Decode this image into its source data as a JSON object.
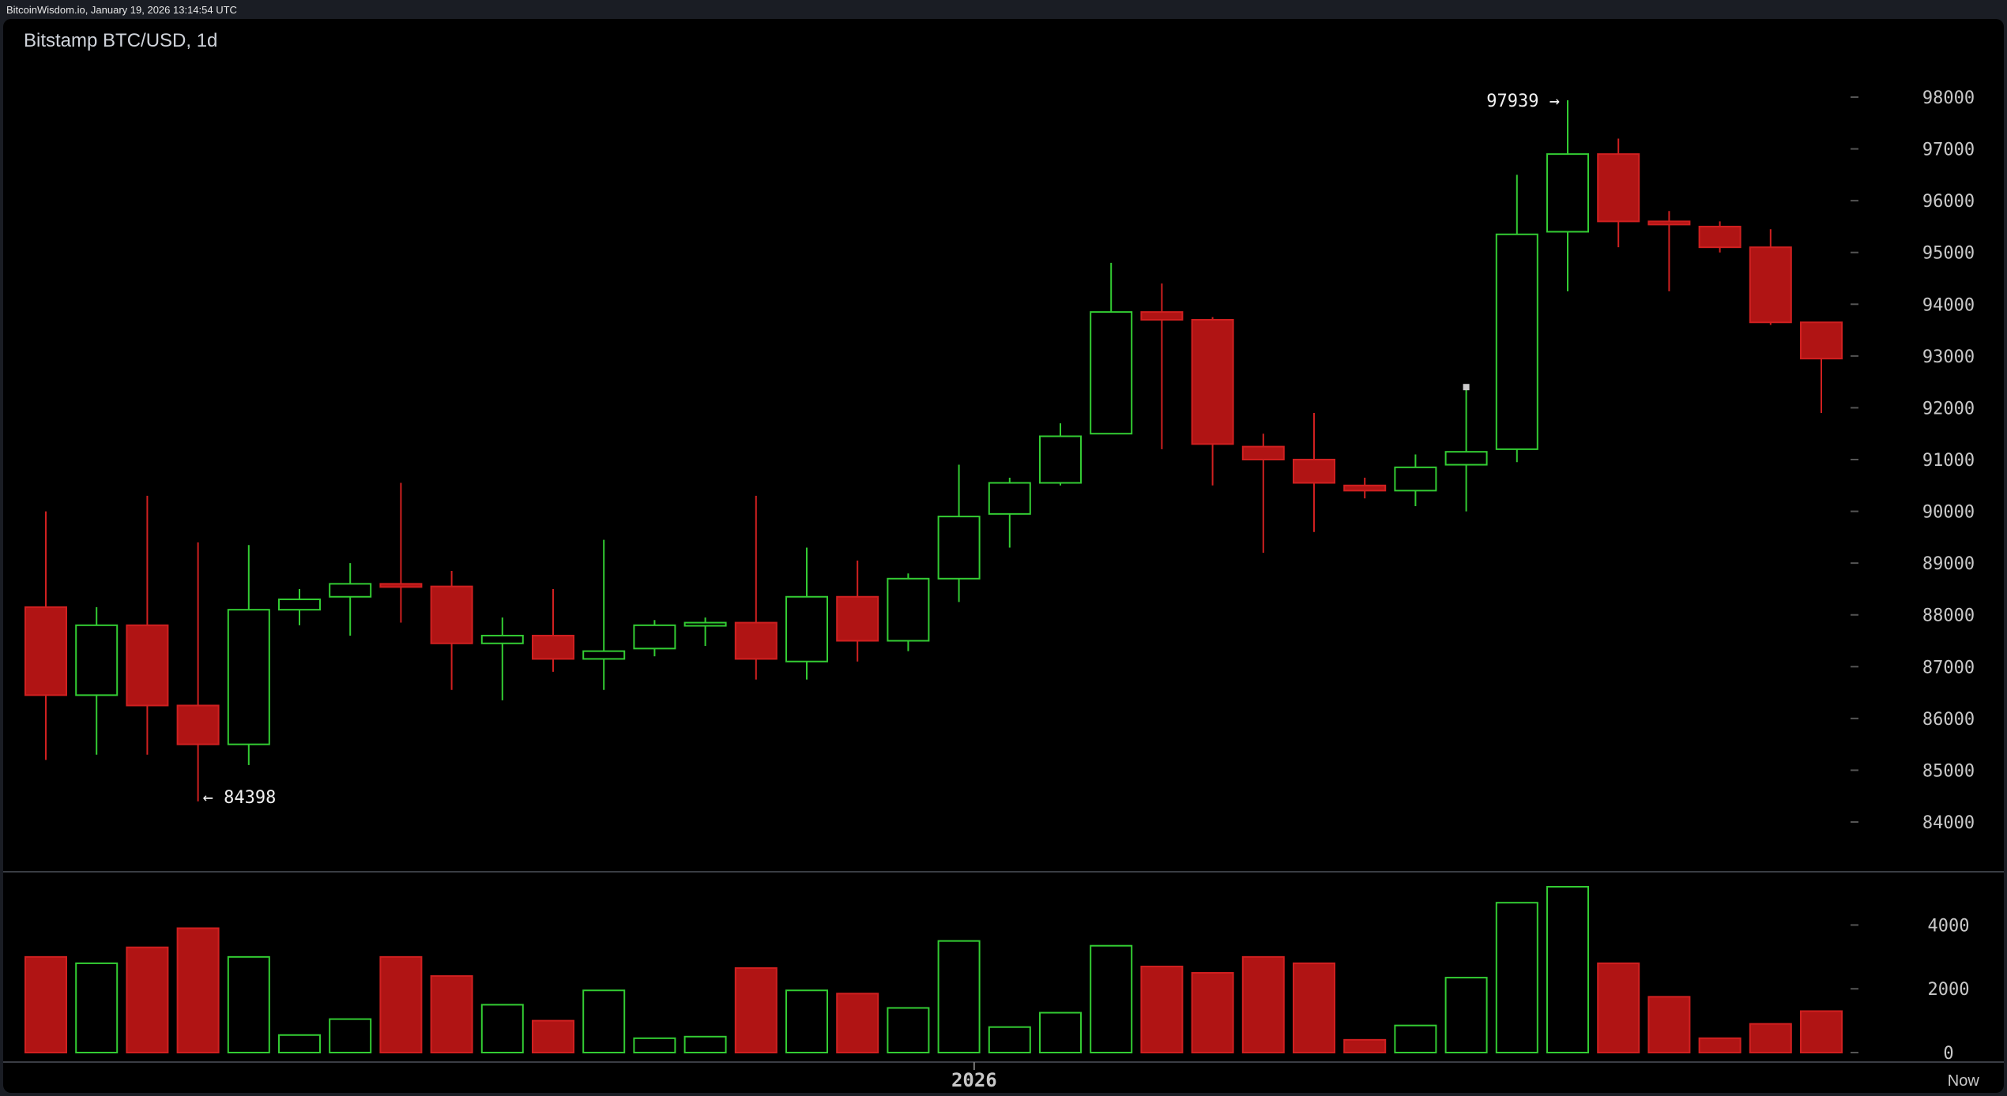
{
  "header": {
    "source": "BitcoinWisdom.io, January 19, 2026 13:14:54 UTC"
  },
  "chart_title": "Bitstamp BTC/USD, 1d",
  "colors": {
    "up": "#33cc33",
    "down": "#b01414",
    "down_border": "#d02020",
    "background": "#000000",
    "axis_text": "#c8c8c8"
  },
  "chart_data": {
    "type": "candlestick",
    "title": "Bitstamp BTC/USD, 1d",
    "price_ylim": [
      84000,
      98000
    ],
    "price_ticks": [
      84000,
      85000,
      86000,
      87000,
      88000,
      89000,
      90000,
      91000,
      92000,
      93000,
      94000,
      95000,
      96000,
      97000,
      98000
    ],
    "volume_ylim": [
      0,
      5200
    ],
    "volume_ticks": [
      0,
      2000,
      4000
    ],
    "x_labels": [
      {
        "text": "2026",
        "index": 18.3
      },
      {
        "text": "Now",
        "index": 37.8
      }
    ],
    "annotations": [
      {
        "text": "97939 →",
        "value": 97939,
        "index": 30,
        "side": "left"
      },
      {
        "text": "← 84398",
        "value": 84398,
        "index": 3,
        "side": "right"
      }
    ],
    "candles": [
      {
        "o": 88150,
        "h": 90000,
        "l": 85200,
        "c": 86450,
        "v": 3000
      },
      {
        "o": 86450,
        "h": 88150,
        "l": 85300,
        "c": 87800,
        "v": 2800
      },
      {
        "o": 87800,
        "h": 90300,
        "l": 85300,
        "c": 86250,
        "v": 3300
      },
      {
        "o": 86250,
        "h": 89400,
        "l": 84398,
        "c": 85500,
        "v": 3900
      },
      {
        "o": 85500,
        "h": 89350,
        "l": 85100,
        "c": 88100,
        "v": 3000
      },
      {
        "o": 88100,
        "h": 88500,
        "l": 87800,
        "c": 88300,
        "v": 550
      },
      {
        "o": 88350,
        "h": 89000,
        "l": 87600,
        "c": 88600,
        "v": 1050
      },
      {
        "o": 88600,
        "h": 90550,
        "l": 87850,
        "c": 88550,
        "v": 3000
      },
      {
        "o": 88550,
        "h": 88850,
        "l": 86550,
        "c": 87450,
        "v": 2400
      },
      {
        "o": 87450,
        "h": 87950,
        "l": 86350,
        "c": 87600,
        "v": 1500
      },
      {
        "o": 87600,
        "h": 88500,
        "l": 86900,
        "c": 87150,
        "v": 1000
      },
      {
        "o": 87150,
        "h": 89450,
        "l": 86550,
        "c": 87300,
        "v": 1950
      },
      {
        "o": 87350,
        "h": 87900,
        "l": 87200,
        "c": 87800,
        "v": 450
      },
      {
        "o": 87800,
        "h": 87950,
        "l": 87400,
        "c": 87850,
        "v": 500
      },
      {
        "o": 87850,
        "h": 90300,
        "l": 86750,
        "c": 87150,
        "v": 2650
      },
      {
        "o": 87100,
        "h": 89300,
        "l": 86750,
        "c": 88350,
        "v": 1950
      },
      {
        "o": 88350,
        "h": 89050,
        "l": 87100,
        "c": 87500,
        "v": 1850
      },
      {
        "o": 87500,
        "h": 88800,
        "l": 87300,
        "c": 88700,
        "v": 1400
      },
      {
        "o": 88700,
        "h": 90900,
        "l": 88250,
        "c": 89900,
        "v": 3500
      },
      {
        "o": 89950,
        "h": 90650,
        "l": 89300,
        "c": 90550,
        "v": 800
      },
      {
        "o": 90550,
        "h": 91700,
        "l": 90500,
        "c": 91450,
        "v": 1250
      },
      {
        "o": 91500,
        "h": 94800,
        "l": 91500,
        "c": 93850,
        "v": 3350
      },
      {
        "o": 93850,
        "h": 94400,
        "l": 91200,
        "c": 93700,
        "v": 2700
      },
      {
        "o": 93700,
        "h": 93750,
        "l": 90500,
        "c": 91300,
        "v": 2500
      },
      {
        "o": 91250,
        "h": 91500,
        "l": 89200,
        "c": 91000,
        "v": 3000
      },
      {
        "o": 91000,
        "h": 91900,
        "l": 89600,
        "c": 90550,
        "v": 2800
      },
      {
        "o": 90500,
        "h": 90650,
        "l": 90250,
        "c": 90400,
        "v": 400
      },
      {
        "o": 90400,
        "h": 91100,
        "l": 90100,
        "c": 90850,
        "v": 850
      },
      {
        "o": 90900,
        "h": 92400,
        "l": 90000,
        "c": 91150,
        "v": 2350
      },
      {
        "o": 91200,
        "h": 96500,
        "l": 90950,
        "c": 95350,
        "v": 4700
      },
      {
        "o": 95400,
        "h": 97939,
        "l": 94250,
        "c": 96900,
        "v": 5200
      },
      {
        "o": 96900,
        "h": 97200,
        "l": 95100,
        "c": 95600,
        "v": 2800
      },
      {
        "o": 95600,
        "h": 95800,
        "l": 94250,
        "c": 95550,
        "v": 1750
      },
      {
        "o": 95500,
        "h": 95600,
        "l": 95000,
        "c": 95100,
        "v": 450
      },
      {
        "o": 95100,
        "h": 95450,
        "l": 93600,
        "c": 93650,
        "v": 900
      },
      {
        "o": 93650,
        "h": 93650,
        "l": 91900,
        "c": 92950,
        "v": 1300
      }
    ]
  }
}
